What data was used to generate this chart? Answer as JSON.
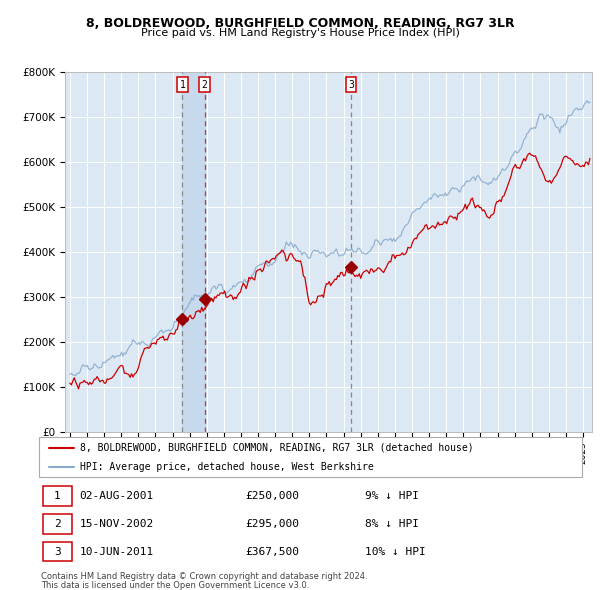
{
  "title": "8, BOLDREWOOD, BURGHFIELD COMMON, READING, RG7 3LR",
  "subtitle": "Price paid vs. HM Land Registry's House Price Index (HPI)",
  "plot_bg_color": "#dce9f5",
  "grid_color": "#ffffff",
  "ylim": [
    0,
    800000
  ],
  "yticks": [
    0,
    100000,
    200000,
    300000,
    400000,
    500000,
    600000,
    700000,
    800000
  ],
  "ytick_labels": [
    "£0",
    "£100K",
    "£200K",
    "£300K",
    "£400K",
    "£500K",
    "£600K",
    "£700K",
    "£800K"
  ],
  "xlim_start": 1994.7,
  "xlim_end": 2025.5,
  "line_color_red": "#cc0000",
  "line_color_blue": "#88aacc",
  "marker_color": "#990000",
  "vline1_x": 2001.58,
  "vline2_x": 2002.87,
  "vline3_x": 2011.44,
  "shade_x1": 2001.58,
  "shade_x2": 2002.87,
  "transaction1": {
    "date": "02-AUG-2001",
    "price": 250000,
    "x": 2001.58,
    "label": "1"
  },
  "transaction2": {
    "date": "15-NOV-2002",
    "price": 295000,
    "x": 2002.87,
    "label": "2"
  },
  "transaction3": {
    "date": "10-JUN-2011",
    "price": 367500,
    "x": 2011.44,
    "label": "3"
  },
  "legend_line1": "8, BOLDREWOOD, BURGHFIELD COMMON, READING, RG7 3LR (detached house)",
  "legend_line2": "HPI: Average price, detached house, West Berkshire",
  "footer1": "Contains HM Land Registry data © Crown copyright and database right 2024.",
  "footer2": "This data is licensed under the Open Government Licence v3.0.",
  "transactions_table": [
    {
      "num": "1",
      "date": "02-AUG-2001",
      "price": "£250,000",
      "pct": "9% ↓ HPI"
    },
    {
      "num": "2",
      "date": "15-NOV-2002",
      "price": "£295,000",
      "pct": "8% ↓ HPI"
    },
    {
      "num": "3",
      "date": "10-JUN-2011",
      "price": "£367,500",
      "pct": "10% ↓ HPI"
    }
  ]
}
